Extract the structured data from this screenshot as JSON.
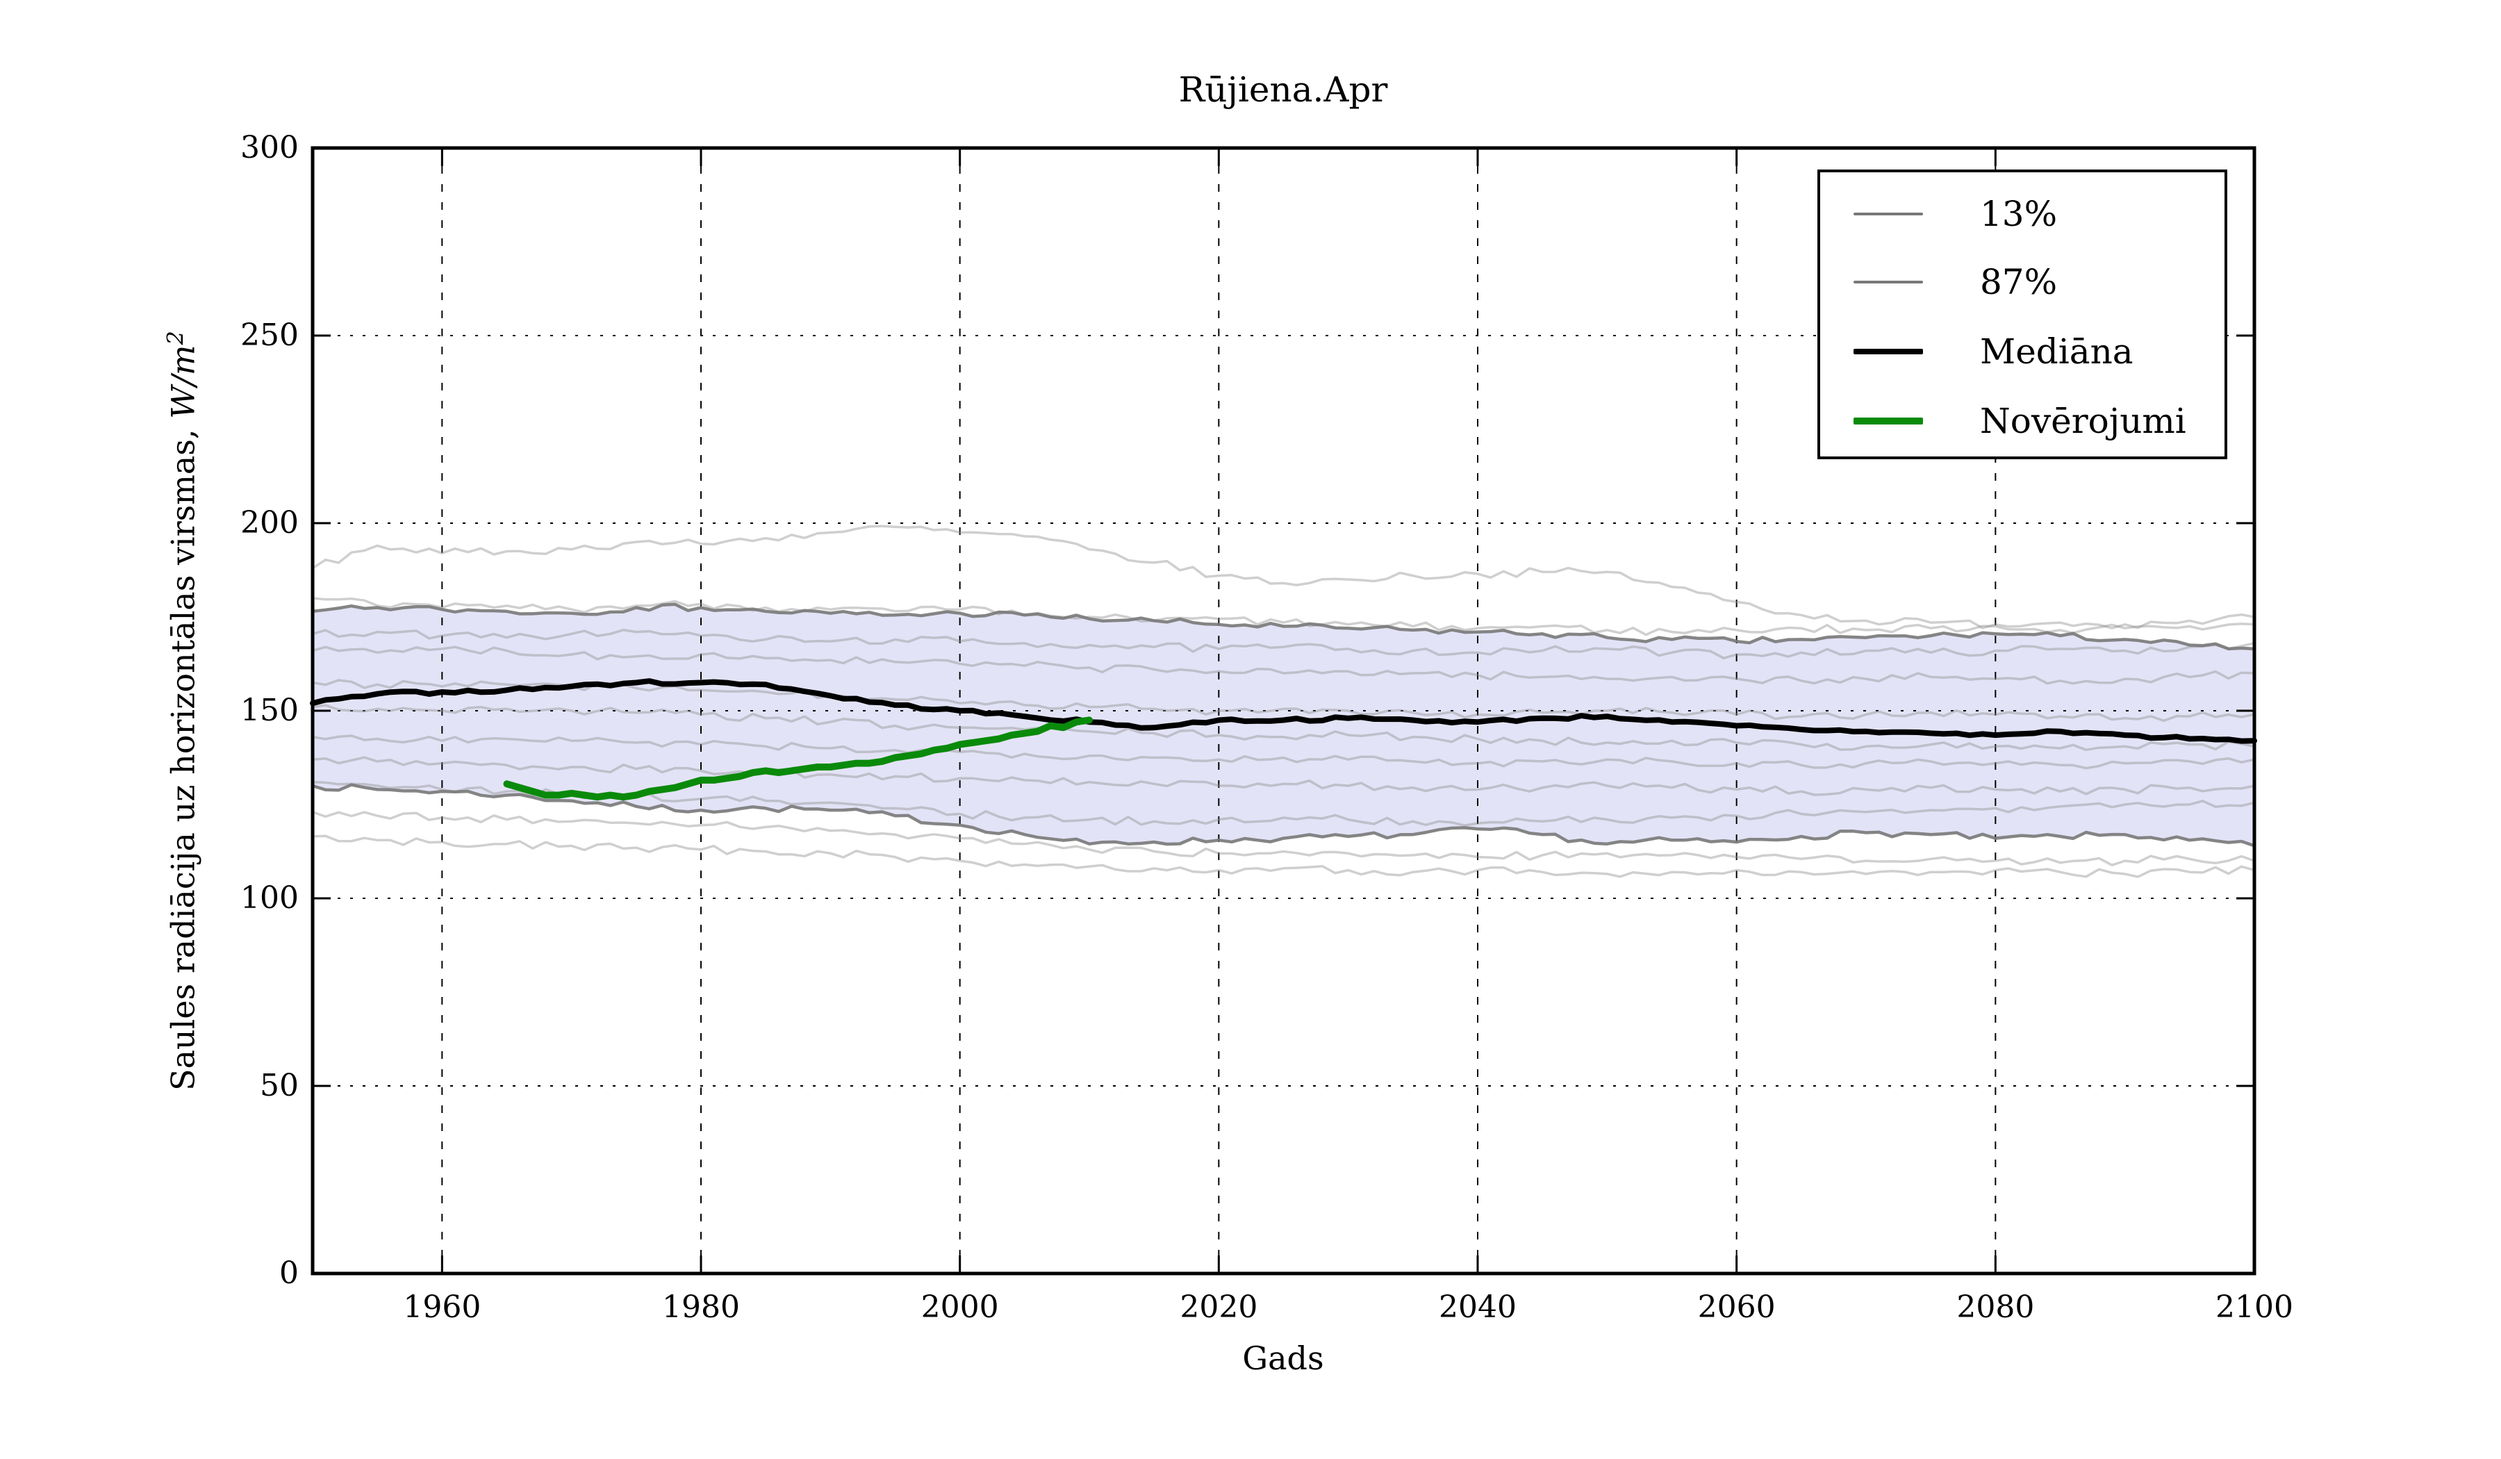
{
  "figure": {
    "background": "#ffffff"
  },
  "chart_data": {
    "type": "line",
    "title": "Rūjiena.Apr",
    "xlabel": "Gads",
    "ylabel": "Saules radiācija uz horizontālas virsmas, W/m²",
    "ylabel_main": "Saules radiācija uz horizontālas virsmas, ",
    "ylabel_math": "W/m",
    "ylabel_sup": "2",
    "xlim": [
      1950,
      2100
    ],
    "ylim": [
      0,
      300
    ],
    "x_ticks": [
      1960,
      1980,
      2000,
      2020,
      2040,
      2060,
      2080,
      2100
    ],
    "x_tick_labels": [
      "1960",
      "1980",
      "2000",
      "2020",
      "2040",
      "2060",
      "2080",
      "2100"
    ],
    "y_ticks": [
      0,
      50,
      100,
      150,
      200,
      250,
      300
    ],
    "y_tick_labels": [
      "0",
      "50",
      "100",
      "150",
      "200",
      "250",
      "300"
    ],
    "grid": true,
    "legend_position": "upper right",
    "colors": {
      "band_fill": "#e3e3f7",
      "grid": "#000000",
      "frame": "#000000",
      "median": "#000000",
      "observations": "#0a8a0a",
      "percentile": "#787878",
      "ensemble": "#8c8c8c"
    },
    "render_hints": {
      "seed": 7,
      "ensemble_jitter": 1.1,
      "band_jitter": 0.9,
      "median_jitter": 0.45
    },
    "years_model": [
      1950,
      1955,
      1960,
      1965,
      1970,
      1975,
      1980,
      1985,
      1990,
      1995,
      2000,
      2005,
      2010,
      2015,
      2020,
      2025,
      2030,
      2035,
      2040,
      2045,
      2050,
      2055,
      2060,
      2065,
      2070,
      2075,
      2080,
      2085,
      2090,
      2095,
      2100
    ],
    "series": [
      {
        "name": "13%",
        "role": "percentile-lower",
        "color": "#787878",
        "width": 4.5,
        "opacity": 0.9,
        "y": [
          130,
          129,
          128.5,
          127.5,
          126,
          124.5,
          123.5,
          124,
          123.5,
          122,
          119.5,
          117,
          114.5,
          115,
          115.5,
          116,
          116.5,
          117,
          118.5,
          117,
          114.5,
          115.5,
          115,
          116.5,
          117.5,
          117,
          116,
          116.5,
          117,
          115.5,
          114
        ]
      },
      {
        "name": "87%",
        "role": "percentile-upper",
        "color": "#787878",
        "width": 4.5,
        "opacity": 0.9,
        "y": [
          176.5,
          177.5,
          177,
          176.5,
          176,
          177.5,
          177.5,
          176.5,
          176,
          175.5,
          176,
          175.5,
          174.5,
          174,
          173,
          172.5,
          172,
          171.5,
          171,
          170.5,
          169.5,
          169,
          168.5,
          169,
          169.5,
          170,
          170.5,
          170,
          169,
          167.5,
          166.5
        ]
      },
      {
        "name": "Mediāna",
        "role": "median",
        "color": "#000000",
        "width": 8,
        "opacity": 1,
        "y": [
          152,
          154.5,
          155,
          155.5,
          156.5,
          157.5,
          157.5,
          157,
          154,
          151.5,
          150,
          148.5,
          147,
          145.5,
          147.5,
          147.5,
          148,
          147.5,
          147,
          148,
          148.5,
          147,
          146,
          145,
          144.5,
          144,
          143.5,
          144.5,
          143.5,
          142.5,
          142
        ]
      },
      {
        "name": "Novērojumi",
        "role": "observations",
        "color": "#0a8a0a",
        "width": 10,
        "opacity": 1,
        "x": [
          1965,
          1966,
          1967,
          1968,
          1969,
          1970,
          1971,
          1972,
          1973,
          1974,
          1975,
          1976,
          1977,
          1978,
          1979,
          1980,
          1981,
          1982,
          1983,
          1984,
          1985,
          1986,
          1987,
          1988,
          1989,
          1990,
          1991,
          1992,
          1993,
          1994,
          1995,
          1996,
          1997,
          1998,
          1999,
          2000,
          2001,
          2002,
          2003,
          2004,
          2005,
          2006,
          2007,
          2008,
          2009,
          2010
        ],
        "y": [
          130.5,
          129.5,
          128.5,
          127.5,
          127.5,
          128,
          127.5,
          127,
          127.5,
          127,
          127.5,
          128.5,
          129,
          129.5,
          130.5,
          131.5,
          131.5,
          132,
          132.5,
          133.5,
          134,
          133.5,
          134,
          134.5,
          135,
          135,
          135.5,
          136,
          136,
          136.5,
          137.5,
          138,
          138.5,
          139.5,
          140,
          141,
          141.5,
          142,
          142.5,
          143.5,
          144,
          144.5,
          146,
          145.5,
          147,
          147.5
        ]
      },
      {
        "name": "ensemble-01",
        "role": "ensemble",
        "color": "#8c8c8c",
        "width": 3.5,
        "opacity": 0.42,
        "y": [
          188,
          194,
          192,
          192.5,
          193,
          195,
          194.5,
          196,
          197.5,
          199,
          197.5,
          196.5,
          193,
          189.5,
          186,
          184,
          185,
          186,
          186.5,
          187,
          187,
          183,
          179,
          175.5,
          174,
          173.5,
          173,
          173.5,
          173,
          174,
          175
        ]
      },
      {
        "name": "ensemble-02",
        "role": "ensemble",
        "color": "#8c8c8c",
        "width": 3.5,
        "opacity": 0.42,
        "y": [
          180,
          178,
          177.5,
          178,
          177,
          178,
          178.5,
          177.5,
          177,
          176.5,
          177,
          175.5,
          175,
          174,
          174.5,
          173.5,
          173,
          172.5,
          172,
          172.5,
          171.5,
          171,
          171.5,
          172,
          171.5,
          172,
          172.5,
          171.5,
          172,
          172.5,
          173
        ]
      },
      {
        "name": "ensemble-03",
        "role": "ensemble",
        "color": "#8c8c8c",
        "width": 3.5,
        "opacity": 0.42,
        "y": [
          170.5,
          171,
          170,
          169.5,
          170.5,
          171,
          170,
          169,
          168.5,
          169,
          168.5,
          168,
          167.5,
          167,
          166.5,
          167,
          166.5,
          166,
          165.5,
          166,
          166.5,
          165.5,
          165,
          165.5,
          166,
          165.5,
          166,
          166.5,
          166,
          167,
          168
        ]
      },
      {
        "name": "ensemble-04",
        "role": "ensemble",
        "color": "#8c8c8c",
        "width": 3.5,
        "opacity": 0.42,
        "y": [
          166,
          165.5,
          166.5,
          166,
          165,
          164.5,
          165,
          164,
          163.5,
          163,
          162.5,
          162,
          161.5,
          161,
          160.5,
          160,
          160.5,
          160,
          159.5,
          159,
          158.5,
          159,
          158.5,
          158,
          158.5,
          159,
          158.5,
          158,
          158.5,
          159,
          160
        ]
      },
      {
        "name": "ensemble-05",
        "role": "ensemble",
        "color": "#8c8c8c",
        "width": 3.5,
        "opacity": 0.42,
        "y": [
          157.5,
          157,
          156.5,
          157,
          156.5,
          156,
          155.5,
          155,
          154,
          153,
          152,
          151.5,
          151,
          150.5,
          150,
          150.5,
          150,
          149.5,
          149,
          149.5,
          150,
          149.5,
          149,
          148.5,
          149,
          149.5,
          149,
          148.5,
          148,
          148.5,
          149
        ]
      },
      {
        "name": "ensemble-06",
        "role": "ensemble",
        "color": "#8c8c8c",
        "width": 3.5,
        "opacity": 0.42,
        "y": [
          151,
          150.5,
          150,
          150.5,
          150,
          149.5,
          149,
          148,
          147,
          146,
          145.5,
          145,
          144.5,
          144,
          143.5,
          143,
          143.5,
          143,
          142.5,
          142,
          141.5,
          142,
          141.5,
          141,
          140.5,
          141,
          140.5,
          140,
          140.5,
          141,
          140.5
        ]
      },
      {
        "name": "ensemble-07",
        "role": "ensemble",
        "color": "#8c8c8c",
        "width": 3.5,
        "opacity": 0.42,
        "y": [
          143,
          142.5,
          142,
          142.5,
          142,
          141.5,
          141,
          140.5,
          140,
          139.5,
          139,
          138.5,
          138,
          137.5,
          137,
          137.5,
          137,
          136.5,
          136,
          136.5,
          137,
          136.5,
          136,
          135.5,
          136,
          136.5,
          136,
          135.5,
          136,
          136.5,
          137
        ]
      },
      {
        "name": "ensemble-08",
        "role": "ensemble",
        "color": "#8c8c8c",
        "width": 3.5,
        "opacity": 0.42,
        "y": [
          137,
          136.5,
          136,
          135.5,
          135,
          134.5,
          134,
          133.5,
          133,
          132.5,
          132,
          131.5,
          131,
          130.5,
          130,
          130.5,
          130,
          129.5,
          129,
          129.5,
          130,
          129.5,
          129,
          128.5,
          129,
          129.5,
          129,
          128.5,
          129,
          129.5,
          130
        ]
      },
      {
        "name": "ensemble-09",
        "role": "ensemble",
        "color": "#8c8c8c",
        "width": 3.5,
        "opacity": 0.42,
        "y": [
          131,
          130,
          129,
          128.5,
          128,
          127,
          126.5,
          126,
          125.5,
          124,
          122.5,
          121.5,
          121,
          120.5,
          121,
          121.5,
          121,
          120.5,
          120,
          120.5,
          121,
          121.5,
          122,
          122.5,
          123,
          123.5,
          124,
          124.5,
          125,
          125,
          125.5
        ]
      },
      {
        "name": "ensemble-10",
        "role": "ensemble",
        "color": "#8c8c8c",
        "width": 3.5,
        "opacity": 0.42,
        "y": [
          123,
          122,
          121.5,
          121,
          120.5,
          120,
          119.5,
          119,
          118,
          117,
          116,
          114.5,
          113,
          112.5,
          112,
          112.5,
          112,
          111.5,
          111,
          111.5,
          112,
          111.5,
          111,
          110.5,
          110,
          110.5,
          110,
          109.5,
          110,
          110.5,
          110
        ]
      },
      {
        "name": "ensemble-11",
        "role": "ensemble",
        "color": "#8c8c8c",
        "width": 3.5,
        "opacity": 0.42,
        "y": [
          116.5,
          115.5,
          115,
          114.5,
          114,
          113.5,
          113,
          112.5,
          112,
          111,
          110,
          109,
          108.5,
          108,
          107.5,
          108,
          107.5,
          107,
          107.5,
          107,
          106.5,
          107,
          107.5,
          107,
          106.5,
          107,
          107.5,
          107,
          106.5,
          107,
          107.5
        ]
      }
    ],
    "legend": {
      "items": [
        {
          "label": "13%",
          "series": "13%"
        },
        {
          "label": "87%",
          "series": "87%"
        },
        {
          "label": "Mediāna",
          "series": "Mediāna"
        },
        {
          "label": "Novērojumi",
          "series": "Novērojumi"
        }
      ]
    }
  }
}
